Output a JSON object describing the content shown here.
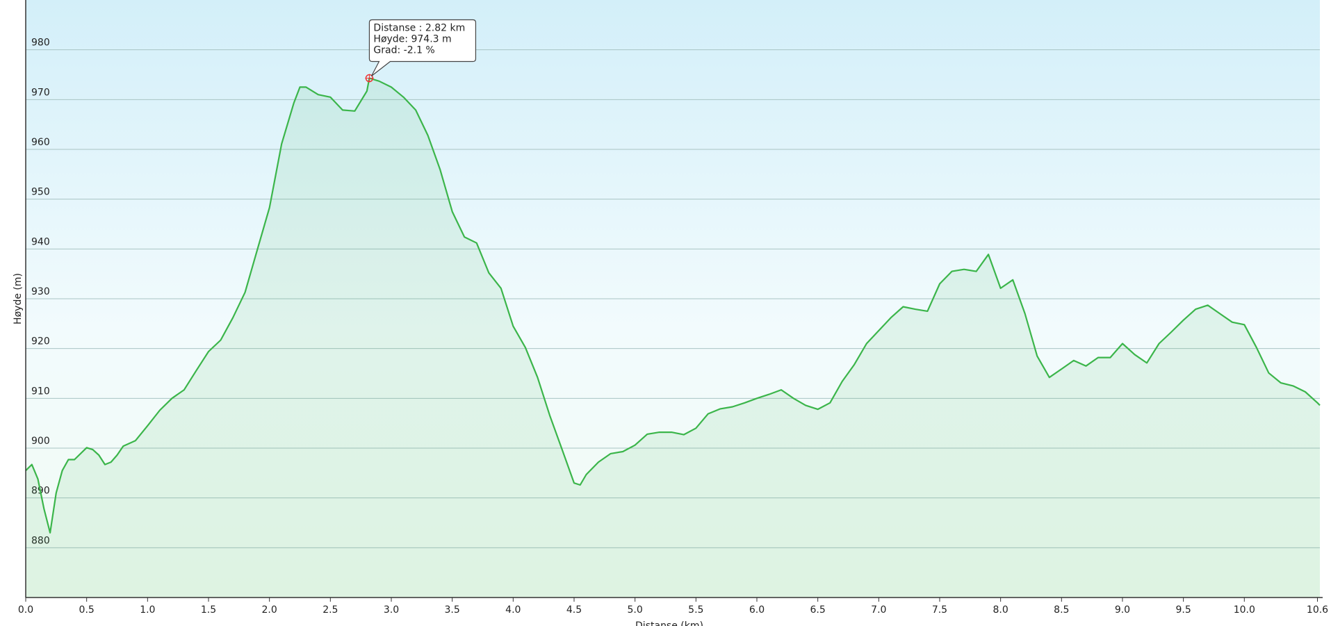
{
  "chart_data": {
    "type": "area",
    "ylabel": "Høyde (m)",
    "xlabel": "Distanse (km)",
    "xlim": [
      0,
      10.62
    ],
    "ylim": [
      870,
      990
    ],
    "yticks": [
      880,
      890,
      900,
      910,
      920,
      930,
      940,
      950,
      960,
      970,
      980
    ],
    "xticks": [
      {
        "value": 0,
        "label": "0.0"
      },
      0.5,
      {
        "value": 1,
        "label": "1.0"
      },
      1.5,
      {
        "value": 2,
        "label": "2.0"
      },
      2.5,
      {
        "value": 3,
        "label": "3.0"
      },
      3.5,
      {
        "value": 4,
        "label": "4.0"
      },
      4.5,
      {
        "value": 5,
        "label": "5.0"
      },
      5.5,
      {
        "value": 6,
        "label": "6.0"
      },
      6.5,
      {
        "value": 7,
        "label": "7.0"
      },
      7.5,
      {
        "value": 8,
        "label": "8.0"
      },
      8.5,
      {
        "value": 9,
        "label": "9.0"
      },
      9.5,
      {
        "value": 10,
        "label": "10.0"
      },
      10.6
    ],
    "grid": true,
    "color": "#3bb54a",
    "x": [
      0,
      0.05,
      0.1,
      0.15,
      0.2,
      0.25,
      0.3,
      0.35,
      0.4,
      0.5,
      0.55,
      0.6,
      0.65,
      0.7,
      0.75,
      0.8,
      0.9,
      1.0,
      1.1,
      1.2,
      1.3,
      1.4,
      1.5,
      1.6,
      1.7,
      1.8,
      1.9,
      2.0,
      2.1,
      2.2,
      2.25,
      2.3,
      2.4,
      2.5,
      2.6,
      2.7,
      2.8,
      2.82,
      2.9,
      3.0,
      3.1,
      3.2,
      3.3,
      3.4,
      3.5,
      3.6,
      3.7,
      3.8,
      3.9,
      4.0,
      4.1,
      4.2,
      4.3,
      4.4,
      4.5,
      4.55,
      4.6,
      4.7,
      4.8,
      4.9,
      5.0,
      5.1,
      5.2,
      5.3,
      5.4,
      5.5,
      5.6,
      5.7,
      5.8,
      5.9,
      6.0,
      6.1,
      6.2,
      6.3,
      6.4,
      6.5,
      6.6,
      6.7,
      6.8,
      6.9,
      7.0,
      7.1,
      7.2,
      7.3,
      7.4,
      7.5,
      7.6,
      7.7,
      7.8,
      7.9,
      8.0,
      8.1,
      8.2,
      8.3,
      8.4,
      8.5,
      8.6,
      8.7,
      8.8,
      8.9,
      9.0,
      9.1,
      9.2,
      9.3,
      9.4,
      9.5,
      9.6,
      9.7,
      9.8,
      9.9,
      10.0,
      10.1,
      10.2,
      10.3,
      10.4,
      10.5,
      10.6,
      10.62
    ],
    "values": [
      895.5,
      896.7,
      893.8,
      887.8,
      883,
      891,
      895.5,
      897.7,
      897.7,
      900.1,
      899.7,
      898.6,
      896.7,
      897.2,
      898.6,
      900.4,
      901.5,
      904.5,
      907.6,
      910,
      911.7,
      915.6,
      919.4,
      921.7,
      926.2,
      931.3,
      939.8,
      948.3,
      961.1,
      969.3,
      972.5,
      972.5,
      971,
      970.5,
      967.9,
      967.7,
      971.7,
      974.3,
      973.7,
      972.5,
      970.5,
      967.9,
      962.8,
      956,
      947.5,
      942.4,
      941.2,
      935.2,
      932.1,
      924.5,
      920.2,
      914.2,
      906.6,
      899.8,
      893,
      892.6,
      894.7,
      897.2,
      898.9,
      899.3,
      900.6,
      902.8,
      903.2,
      903.2,
      902.7,
      904,
      906.9,
      907.9,
      908.3,
      909.1,
      910,
      910.8,
      911.7,
      910,
      908.6,
      907.8,
      909.1,
      913.4,
      916.8,
      921,
      923.6,
      926.2,
      928.4,
      927.9,
      927.5,
      933,
      935.5,
      935.9,
      935.5,
      938.9,
      932.1,
      933.8,
      927,
      918.5,
      914.2,
      915.9,
      917.6,
      916.5,
      918.2,
      918.2,
      921,
      918.8,
      917.1,
      921,
      923.3,
      925.7,
      927.9,
      928.7,
      927,
      925.3,
      924.8,
      920.2,
      915.1,
      913.1,
      912.5,
      911.3,
      909.1,
      908.6
    ],
    "marker": {
      "x": 2.82,
      "y": 974.3
    },
    "tooltip": [
      "Distanse : 2.82 km",
      "Høyde: 974.3 m",
      "Grad: -2.1 %"
    ]
  }
}
